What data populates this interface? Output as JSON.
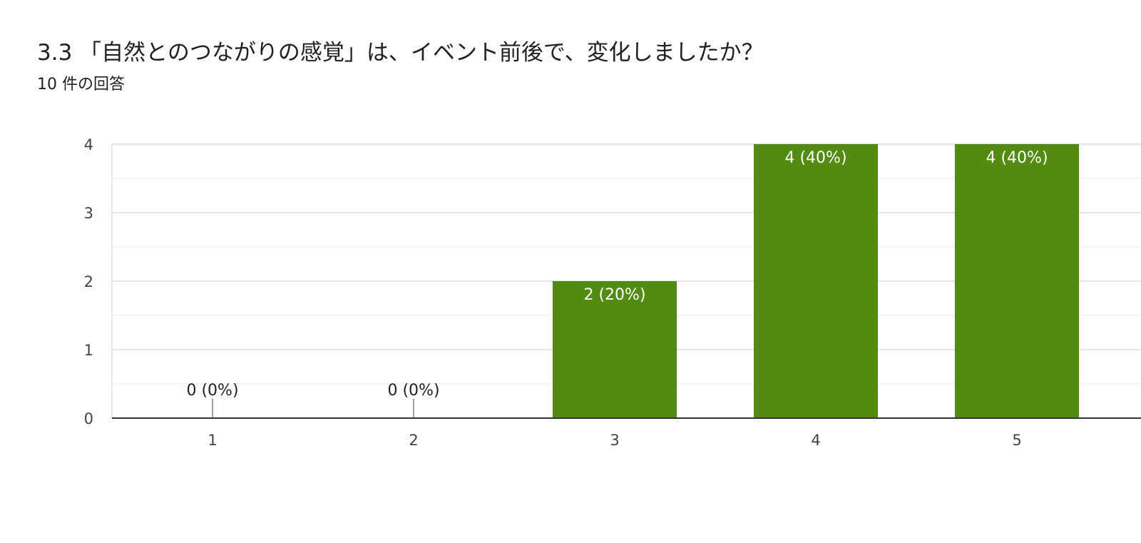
{
  "question": {
    "title": "3.3 「自然とのつながりの感覚」は、イベント前後で、変化しましたか？",
    "response_count": "10 件の回答"
  },
  "colors": {
    "bar": "#538b12",
    "grid_major": "#e6e6e6",
    "grid_minor": "#f2f2f2",
    "axis": "#333333",
    "zero_stub": "#9e9e9e",
    "label_inside": "#ffffff",
    "label_outside": "#222222"
  },
  "chart_data": {
    "type": "bar",
    "title": "",
    "xlabel": "",
    "ylabel": "",
    "categories": [
      "1",
      "2",
      "3",
      "4",
      "5"
    ],
    "values": [
      0,
      0,
      2,
      4,
      4
    ],
    "data_labels": [
      "0 (0%)",
      "0 (0%)",
      "2 (20%)",
      "4 (40%)",
      "4 (40%)"
    ],
    "ylim": [
      0,
      4
    ],
    "yticks": [
      "0",
      "1",
      "2",
      "3",
      "4"
    ],
    "grid": true,
    "legend": "none"
  }
}
